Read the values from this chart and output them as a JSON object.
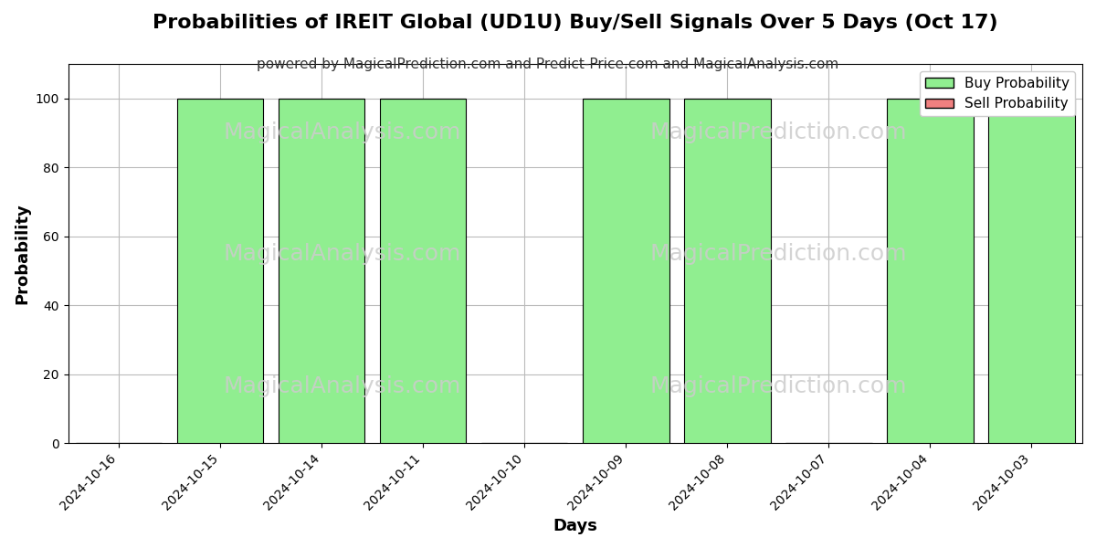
{
  "title": "Probabilities of IREIT Global (UD1U) Buy/Sell Signals Over 5 Days (Oct 17)",
  "subtitle": "powered by MagicalPrediction.com and Predict-Price.com and MagicalAnalysis.com",
  "xlabel": "Days",
  "ylabel": "Probability",
  "dates": [
    "2024-10-16",
    "2024-10-15",
    "2024-10-14",
    "2024-10-11",
    "2024-10-10",
    "2024-10-09",
    "2024-10-08",
    "2024-10-07",
    "2024-10-04",
    "2024-10-03"
  ],
  "buy_probs": [
    0,
    100,
    100,
    100,
    0,
    100,
    100,
    0,
    100,
    100
  ],
  "sell_probs": [
    0,
    0,
    0,
    0,
    0,
    0,
    0,
    0,
    0,
    0
  ],
  "buy_color": "#90EE90",
  "sell_color": "#F08080",
  "bar_edge_color": "#000000",
  "ylim": [
    0,
    110
  ],
  "yticks": [
    0,
    20,
    40,
    60,
    80,
    100
  ],
  "grid_color": "#bbbbbb",
  "background_color": "#ffffff",
  "watermark_color": "#cccccc",
  "title_fontsize": 16,
  "subtitle_fontsize": 11,
  "axis_label_fontsize": 13,
  "tick_fontsize": 10,
  "legend_fontsize": 11,
  "dashed_line_color": "#aaaaaa",
  "bar_width": 0.85
}
